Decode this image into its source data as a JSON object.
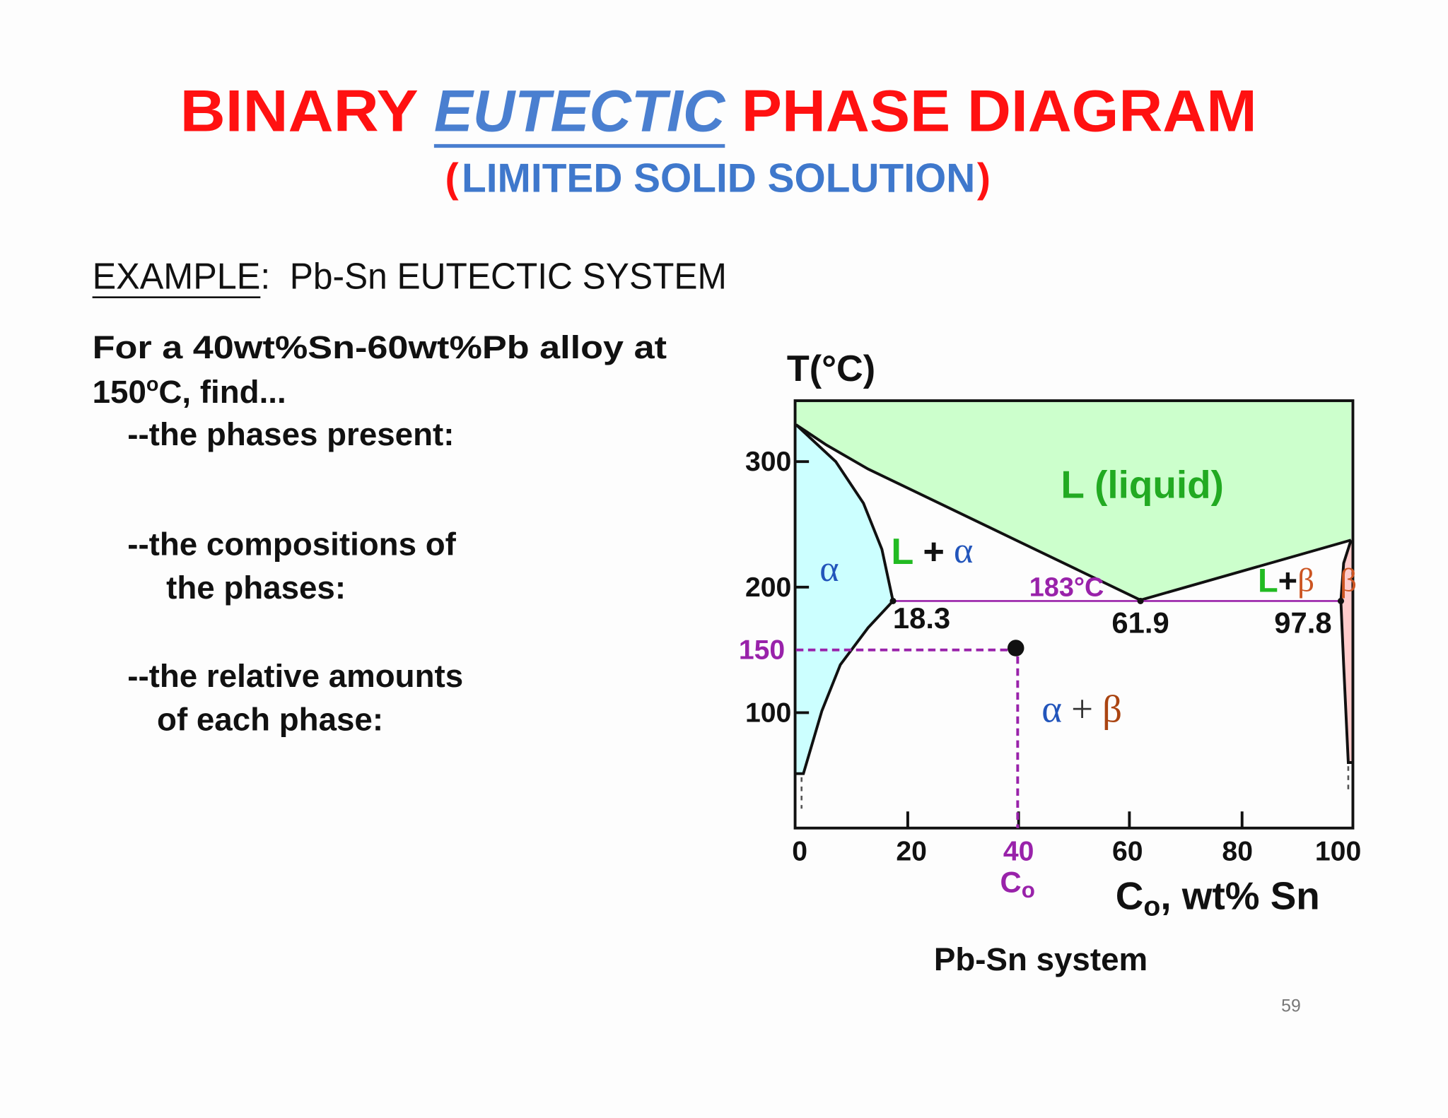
{
  "header": {
    "title": {
      "part1": "BINARY",
      "part2": "EUTECTIC",
      "part3": "PHASE DIAGRAM"
    },
    "subtitle": {
      "open": "(",
      "text": "LIMITED SOLID SOLUTION",
      "close": ")"
    }
  },
  "example": {
    "label": "EXAMPLE",
    "text": ":  Pb-Sn EUTECTIC SYSTEM"
  },
  "question": {
    "line1": "For a 40wt%Sn-60wt%Pb alloy at",
    "line2": {
      "number": "150",
      "sup": "o",
      "rest": "C, find..."
    },
    "item1": "--the phases present:",
    "item2": {
      "line1": "--the compositions of",
      "line2": "the phases:"
    },
    "item3": {
      "line1": "--the relative amounts",
      "line2": "of each phase:"
    }
  },
  "diagram": {
    "y_axis_label": "T(°C)",
    "y_ticks": [
      "300",
      "200",
      "100"
    ],
    "marked_temperature": "150",
    "x_ticks": [
      "0",
      "20",
      "40",
      "60",
      "80",
      "100"
    ],
    "composition_label": {
      "main": "C",
      "sub": "o"
    },
    "x_axis_label": {
      "main": "C",
      "sub": "o",
      "rest": ", wt% Sn"
    },
    "regions": {
      "liquid": "L (liquid)",
      "alpha": "α",
      "liquid_alpha": {
        "l": "L",
        "plus": "+",
        "alpha": "α"
      },
      "alpha_beta": {
        "alpha": "α",
        "plus": "+",
        "beta": "β"
      },
      "liquid_beta": {
        "l": "L",
        "plus": "+",
        "beta": "β"
      },
      "beta": "β"
    },
    "eutectic": {
      "temperature": "183°C",
      "compositions": [
        "18.3",
        "61.9",
        "97.8"
      ]
    },
    "caption": "Pb-Sn system"
  },
  "page_number": "59"
}
